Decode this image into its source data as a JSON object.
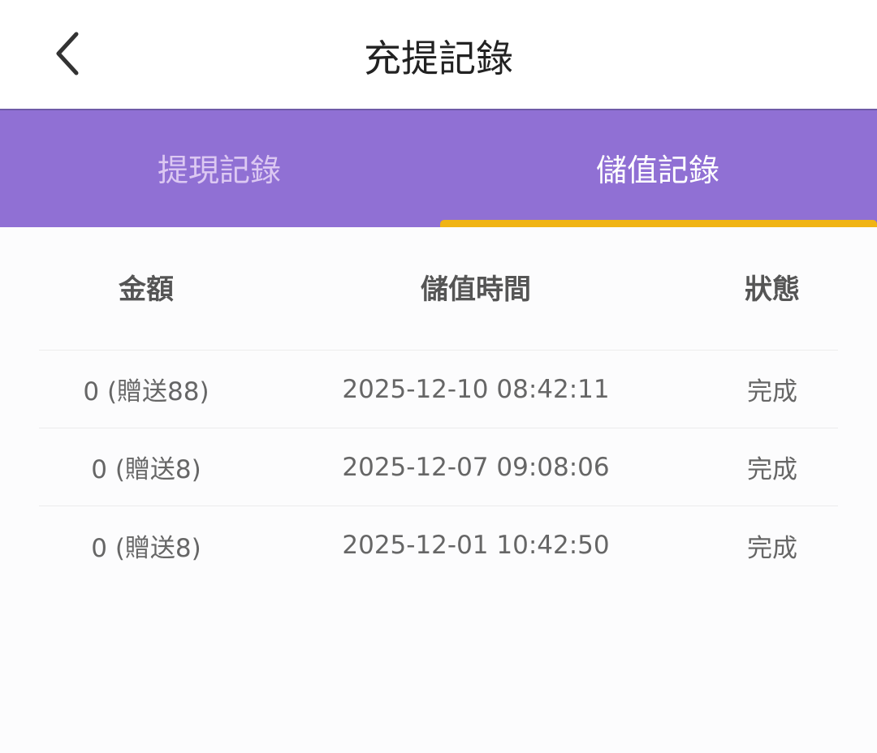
{
  "header": {
    "title": "充提記錄",
    "back_icon": "chevron-left-icon"
  },
  "tabs": [
    {
      "label": "提現記錄",
      "active": false
    },
    {
      "label": "儲值記錄",
      "active": true
    }
  ],
  "colors": {
    "tab_bar": "#9070d4",
    "indicator": "#f0b414"
  },
  "table": {
    "headers": [
      "金額",
      "儲值時間",
      "狀態"
    ],
    "rows": [
      {
        "amount": "0 (贈送88)",
        "time": "2025-12-10 08:42:11",
        "status": "完成"
      },
      {
        "amount": "0 (贈送8)",
        "time": "2025-12-07 09:08:06",
        "status": "完成"
      },
      {
        "amount": "0 (贈送8)",
        "time": "2025-12-01 10:42:50",
        "status": "完成"
      }
    ]
  }
}
